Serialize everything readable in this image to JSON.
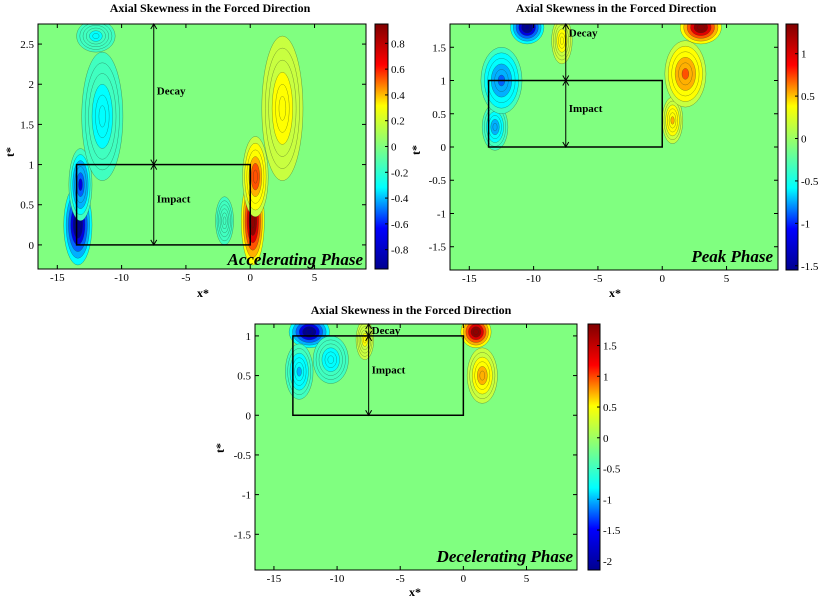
{
  "chart_data": [
    {
      "type": "heatmap",
      "title": "Axial Skewness in the Forced Direction",
      "xlabel": "x*",
      "ylabel": "t*",
      "phase_label": "Accelerating Phase",
      "xlim": [
        -16.5,
        9
      ],
      "ylim": [
        -0.3,
        2.75
      ],
      "xticks": [
        -15,
        -10,
        -5,
        0,
        5
      ],
      "yticks": [
        0,
        0.5,
        1,
        1.5,
        2,
        2.5
      ],
      "xtick_labels": [
        "-15",
        "-10",
        "-5",
        "0",
        "5"
      ],
      "ytick_labels": [
        "0",
        "0.5",
        "1",
        "1.5",
        "2",
        "2.5"
      ],
      "clim": [
        -0.95,
        0.95
      ],
      "colorbar_ticks": [
        0.8,
        0.6,
        0.4,
        0.2,
        0,
        -0.2,
        -0.4,
        -0.6,
        -0.8
      ],
      "colorbar_labels": [
        "0.8",
        "0.6",
        "0.4",
        "0.2",
        "0",
        "-0.2",
        "-0.4",
        "-0.6",
        "-0.8"
      ],
      "impact_box": {
        "x": [
          -13.5,
          0
        ],
        "t": [
          0,
          1
        ]
      },
      "decay_arrow": {
        "x": -7.5,
        "t": [
          1,
          2.75
        ],
        "label": "Decay"
      },
      "impact_arrow": {
        "x": -7.5,
        "t": [
          0,
          1
        ],
        "label": "Impact"
      }
    },
    {
      "type": "heatmap",
      "title": "Axial Skewness in the Forced Direction",
      "xlabel": "x*",
      "ylabel": "t*",
      "phase_label": "Peak Phase",
      "xlim": [
        -16.5,
        9
      ],
      "ylim": [
        -1.85,
        1.85
      ],
      "xticks": [
        -15,
        -10,
        -5,
        0,
        5
      ],
      "yticks": [
        -1.5,
        -1,
        -0.5,
        0,
        0.5,
        1,
        1.5
      ],
      "xtick_labels": [
        "-15",
        "-10",
        "-5",
        "0",
        "5"
      ],
      "ytick_labels": [
        "-1.5",
        "-1",
        "-0.5",
        "0",
        "0.5",
        "1",
        "1.5"
      ],
      "clim": [
        -1.55,
        1.35
      ],
      "colorbar_ticks": [
        1,
        0.5,
        0,
        -0.5,
        -1,
        -1.5
      ],
      "colorbar_labels": [
        "1",
        "0.5",
        "0",
        "-0.5",
        "-1",
        "-1.5"
      ],
      "impact_box": {
        "x": [
          -13.5,
          0
        ],
        "t": [
          0,
          1
        ]
      },
      "decay_arrow": {
        "x": -7.5,
        "t": [
          1,
          1.85
        ],
        "label": "Decay"
      },
      "impact_arrow": {
        "x": -7.5,
        "t": [
          0,
          1
        ],
        "label": "Impact"
      }
    },
    {
      "type": "heatmap",
      "title": "Axial Skewness in the Forced Direction",
      "xlabel": "x*",
      "ylabel": "t*",
      "phase_label": "Decelerating Phase",
      "xlim": [
        -16.5,
        9
      ],
      "ylim": [
        -1.95,
        1.15
      ],
      "xticks": [
        -15,
        -10,
        -5,
        0,
        5
      ],
      "yticks": [
        -1.5,
        -1,
        -0.5,
        0,
        0.5,
        1
      ],
      "xtick_labels": [
        "-15",
        "-10",
        "-5",
        "0",
        "5"
      ],
      "ytick_labels": [
        "-1.5",
        "-1",
        "-0.5",
        "0",
        "0.5",
        "1"
      ],
      "clim": [
        -2.15,
        1.85
      ],
      "colorbar_ticks": [
        1.5,
        1,
        0.5,
        0,
        -0.5,
        -1,
        -1.5,
        -2
      ],
      "colorbar_labels": [
        "1.5",
        "1",
        "0.5",
        "0",
        "-0.5",
        "-1",
        "-1.5",
        "-2"
      ],
      "impact_box": {
        "x": [
          -13.5,
          0
        ],
        "t": [
          0,
          1
        ]
      },
      "decay_arrow": {
        "x": -7.5,
        "t": [
          1,
          1.15
        ],
        "label": "Decay"
      },
      "impact_arrow": {
        "x": -7.5,
        "t": [
          0,
          1
        ],
        "label": "Impact"
      }
    }
  ],
  "colormap": [
    "#00008f",
    "#0000ff",
    "#00ffff",
    "#80ff80",
    "#ffff00",
    "#ff0000",
    "#800000"
  ],
  "background_color": "#80ff80"
}
